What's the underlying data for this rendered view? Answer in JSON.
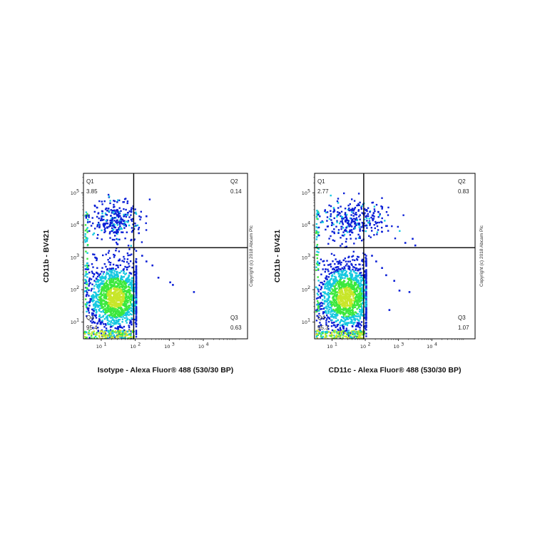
{
  "chart_data": [
    {
      "type": "scatter",
      "subtype": "flow-cytometry-density-dot-plot",
      "xlabel": "Isotype - Alexa Fluor® 488 (530/30 BP)",
      "ylabel": "CD11b - BV421",
      "x_scale": "log",
      "y_scale": "log",
      "x_ticks": [
        {
          "value": 10,
          "label": "10",
          "exp": "1"
        },
        {
          "value": 100,
          "label": "10",
          "exp": "2"
        },
        {
          "value": 1000,
          "label": "10",
          "exp": "3"
        },
        {
          "value": 10000,
          "label": "10",
          "exp": "4"
        }
      ],
      "y_ticks": [
        {
          "value": 10,
          "label": "10",
          "exp": "1"
        },
        {
          "value": 100,
          "label": "10",
          "exp": "2"
        },
        {
          "value": 1000,
          "label": "10",
          "exp": "3"
        },
        {
          "value": 10000,
          "label": "10",
          "exp": "4"
        },
        {
          "value": 100000,
          "label": "10",
          "exp": "5"
        }
      ],
      "xlim": [
        3,
        200000
      ],
      "ylim": [
        3,
        400000
      ],
      "gate": {
        "x": 90,
        "y": 2000
      },
      "quadrants": [
        {
          "name": "Q1",
          "value": "3.85",
          "position": "top-left"
        },
        {
          "name": "Q2",
          "value": "0.14",
          "position": "top-right"
        },
        {
          "name": "Q3",
          "value": "0.63",
          "position": "bottom-right"
        },
        {
          "name": "Q4",
          "value": "95.4",
          "position": "bottom-left"
        }
      ],
      "populations": {
        "main": {
          "x_center": 25,
          "y_center": 60,
          "x_spread": 0.45,
          "y_spread": 0.55,
          "count": 1500
        },
        "upper": {
          "x_center": 25,
          "y_center": 15000,
          "x_spread": 0.4,
          "y_spread": 0.3,
          "count": 300
        },
        "outliers": [
          [
            150,
            1200
          ],
          [
            200,
            800
          ],
          [
            300,
            600
          ],
          [
            450,
            250
          ],
          [
            1000,
            180
          ],
          [
            1200,
            150
          ],
          [
            5000,
            90
          ],
          [
            120,
            6000
          ],
          [
            200,
            20000
          ]
        ]
      },
      "copyright": "Copyright (c) 2018 Abcam Plc",
      "colors": {
        "low": "#0b1fd6",
        "mid": "#15c8e0",
        "high": "#3ce83c",
        "peak": "#c8e62a"
      }
    },
    {
      "type": "scatter",
      "subtype": "flow-cytometry-density-dot-plot",
      "xlabel": "CD11c - Alexa Fluor® 488 (530/30 BP)",
      "ylabel": "CD11b - BV421",
      "x_scale": "log",
      "y_scale": "log",
      "x_ticks": [
        {
          "value": 10,
          "label": "10",
          "exp": "1"
        },
        {
          "value": 100,
          "label": "10",
          "exp": "2"
        },
        {
          "value": 1000,
          "label": "10",
          "exp": "3"
        },
        {
          "value": 10000,
          "label": "10",
          "exp": "4"
        }
      ],
      "y_ticks": [
        {
          "value": 10,
          "label": "10",
          "exp": "1"
        },
        {
          "value": 100,
          "label": "10",
          "exp": "2"
        },
        {
          "value": 1000,
          "label": "10",
          "exp": "3"
        },
        {
          "value": 10000,
          "label": "10",
          "exp": "4"
        },
        {
          "value": 100000,
          "label": "10",
          "exp": "5"
        }
      ],
      "xlim": [
        3,
        200000
      ],
      "ylim": [
        3,
        400000
      ],
      "gate": {
        "x": 90,
        "y": 2000
      },
      "quadrants": [
        {
          "name": "Q1",
          "value": "2.77",
          "position": "top-left"
        },
        {
          "name": "Q2",
          "value": "0.83",
          "position": "top-right"
        },
        {
          "name": "Q3",
          "value": "1.07",
          "position": "bottom-right"
        },
        {
          "name": "Q4",
          "value": "95.3",
          "position": "bottom-left"
        }
      ],
      "populations": {
        "main": {
          "x_center": 25,
          "y_center": 60,
          "x_spread": 0.45,
          "y_spread": 0.55,
          "count": 1500
        },
        "upper": {
          "x_center": 40,
          "y_center": 15000,
          "x_spread": 0.55,
          "y_spread": 0.3,
          "count": 320
        },
        "outliers": [
          [
            150,
            1200
          ],
          [
            200,
            800
          ],
          [
            300,
            500
          ],
          [
            400,
            300
          ],
          [
            700,
            200
          ],
          [
            1000,
            100
          ],
          [
            2000,
            90
          ],
          [
            200,
            12000
          ],
          [
            400,
            10000
          ],
          [
            1500,
            3000
          ],
          [
            3000,
            2500
          ],
          [
            500,
            25
          ],
          [
            2500,
            4000
          ]
        ]
      },
      "copyright": "Copyright (c) 2018 Abcam Plc",
      "colors": {
        "low": "#0b1fd6",
        "mid": "#15c8e0",
        "high": "#3ce83c",
        "peak": "#c8e62a"
      }
    }
  ]
}
